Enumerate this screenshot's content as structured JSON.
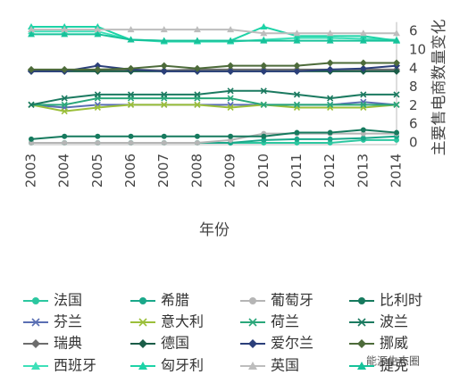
{
  "chart_data": {
    "type": "line",
    "x_label": "年份",
    "y_label": "主要售电商数量变化",
    "watermark": "能源生态圈",
    "categories": [
      "2003",
      "2004",
      "2005",
      "2006",
      "2007",
      "2008",
      "2009",
      "2010",
      "2011",
      "2012",
      "2013",
      "2014"
    ],
    "ylim": [
      0,
      13
    ],
    "yticks": [
      {
        "value": 12,
        "label": "6"
      },
      {
        "value": 10,
        "label": "10"
      },
      {
        "value": 8,
        "label": "4"
      },
      {
        "value": 6,
        "label": "8"
      },
      {
        "value": 4,
        "label": "2"
      },
      {
        "value": 2,
        "label": "6"
      },
      0
    ],
    "series": [
      {
        "name": "法国",
        "color": "#2cc7a0",
        "marker": "circle",
        "values": [
          0,
          0,
          0,
          0,
          0,
          0,
          0,
          0,
          0,
          0,
          0.3,
          0.3
        ]
      },
      {
        "name": "希腊",
        "color": "#1aa88a",
        "marker": "circle",
        "values": [
          0,
          0,
          0,
          0,
          0,
          0,
          0,
          0.3,
          0.4,
          0.4,
          0.5,
          0.7
        ]
      },
      {
        "name": "葡萄牙",
        "color": "#b5b5b5",
        "marker": "circle",
        "values": [
          0,
          0,
          0,
          0,
          0,
          0,
          0.3,
          1.0,
          1.0,
          1.0,
          1.0,
          1.0
        ]
      },
      {
        "name": "比利时",
        "color": "#167a5e",
        "marker": "circle",
        "values": [
          0.4,
          0.7,
          0.7,
          0.7,
          0.7,
          0.7,
          0.7,
          0.7,
          1.1,
          1.1,
          1.4,
          1.1
        ]
      },
      {
        "name": "芬兰",
        "color": "#5a6fb3",
        "marker": "x",
        "values": [
          4.1,
          3.8,
          4.1,
          4.1,
          4.1,
          4.1,
          4.1,
          4.1,
          4.1,
          4.1,
          4.4,
          4.1
        ]
      },
      {
        "name": "意大利",
        "color": "#9bbf3a",
        "marker": "x",
        "values": [
          4.1,
          3.4,
          3.8,
          4.1,
          4.1,
          4.1,
          3.8,
          4.1,
          3.8,
          3.8,
          3.8,
          4.1
        ]
      },
      {
        "name": "荷兰",
        "color": "#2aa77a",
        "marker": "x",
        "values": [
          4.1,
          4.1,
          4.8,
          4.8,
          4.8,
          4.8,
          4.8,
          4.1,
          4.1,
          4.1,
          4.1,
          4.1
        ]
      },
      {
        "name": "波兰",
        "color": "#1b7a60",
        "marker": "x",
        "values": [
          4.1,
          4.8,
          5.2,
          5.2,
          5.2,
          5.2,
          5.6,
          5.6,
          5.2,
          4.8,
          5.2,
          5.2
        ]
      },
      {
        "name": "瑞典",
        "color": "#6d6d6d",
        "marker": "diamond",
        "values": [
          7.8,
          7.8,
          7.8,
          7.9,
          7.8,
          7.9,
          7.9,
          7.9,
          7.9,
          7.9,
          7.9,
          7.9
        ]
      },
      {
        "name": "德国",
        "color": "#1a5d48",
        "marker": "diamond",
        "values": [
          7.7,
          7.7,
          7.7,
          7.7,
          7.7,
          7.7,
          7.7,
          7.7,
          7.7,
          7.7,
          7.7,
          7.7
        ]
      },
      {
        "name": "爱尔兰",
        "color": "#2b3f7a",
        "marker": "diamond",
        "values": [
          7.7,
          7.7,
          8.3,
          7.9,
          7.7,
          7.7,
          7.7,
          7.7,
          7.7,
          7.9,
          8.0,
          8.3
        ]
      },
      {
        "name": "挪威",
        "color": "#4d6b3a",
        "marker": "diamond",
        "values": [
          7.9,
          7.9,
          7.9,
          8.0,
          8.3,
          8.0,
          8.3,
          8.3,
          8.3,
          8.6,
          8.6,
          8.6
        ]
      },
      {
        "name": "西班牙",
        "color": "#3ee0b9",
        "marker": "triangle",
        "values": [
          12.0,
          12.0,
          12.0,
          11.1,
          10.9,
          10.9,
          10.9,
          11.1,
          11.3,
          11.3,
          11.2,
          11.1
        ]
      },
      {
        "name": "匈牙利",
        "color": "#1dd3a7",
        "marker": "triangle",
        "values": [
          12.5,
          12.5,
          12.5,
          11.1,
          11.0,
          11.0,
          11.0,
          12.5,
          11.5,
          11.5,
          11.5,
          11.0
        ]
      },
      {
        "name": "英国",
        "color": "#bdbdbd",
        "marker": "triangle",
        "values": [
          12.2,
          12.2,
          12.2,
          12.2,
          12.2,
          12.2,
          12.2,
          11.8,
          11.8,
          11.8,
          11.8,
          11.8
        ]
      },
      {
        "name": "捷克",
        "color": "#17c29a",
        "marker": "triangle",
        "values": [
          11.7,
          11.7,
          11.7,
          11.1,
          11.0,
          11.0,
          11.0,
          11.0,
          11.0,
          11.0,
          11.0,
          11.0
        ]
      }
    ]
  }
}
